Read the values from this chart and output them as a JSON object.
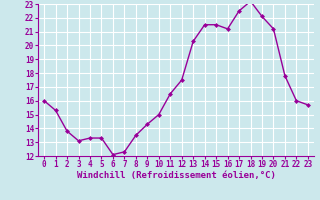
{
  "x": [
    0,
    1,
    2,
    3,
    4,
    5,
    6,
    7,
    8,
    9,
    10,
    11,
    12,
    13,
    14,
    15,
    16,
    17,
    18,
    19,
    20,
    21,
    22,
    23
  ],
  "y": [
    16.0,
    15.3,
    13.8,
    13.1,
    13.3,
    13.3,
    12.1,
    12.3,
    13.5,
    14.3,
    15.0,
    16.5,
    17.5,
    20.3,
    21.5,
    21.5,
    21.2,
    22.5,
    23.2,
    22.1,
    21.2,
    17.8,
    16.0,
    15.7
  ],
  "line_color": "#990099",
  "marker": "D",
  "marker_size": 2.0,
  "linewidth": 1.0,
  "bg_color": "#cce8ec",
  "grid_color": "#ffffff",
  "xlabel": "Windchill (Refroidissement éolien,°C)",
  "xlabel_color": "#990099",
  "tick_color": "#990099",
  "axis_color": "#990099",
  "ylim": [
    12,
    23
  ],
  "xlim": [
    -0.5,
    23.5
  ],
  "yticks": [
    12,
    13,
    14,
    15,
    16,
    17,
    18,
    19,
    20,
    21,
    22,
    23
  ],
  "xticks": [
    0,
    1,
    2,
    3,
    4,
    5,
    6,
    7,
    8,
    9,
    10,
    11,
    12,
    13,
    14,
    15,
    16,
    17,
    18,
    19,
    20,
    21,
    22,
    23
  ],
  "tick_fontsize": 5.5,
  "xlabel_fontsize": 6.5,
  "font_family": "monospace"
}
